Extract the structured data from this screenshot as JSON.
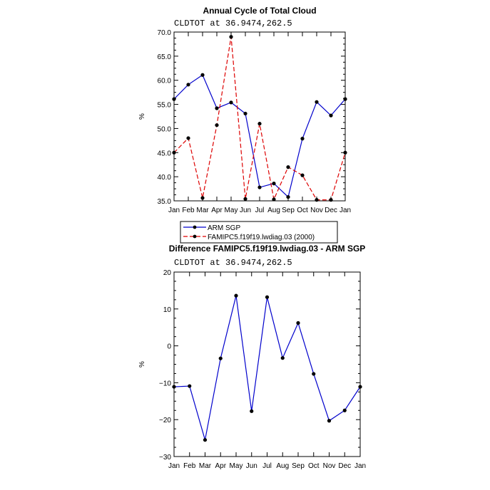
{
  "chart_data": [
    {
      "type": "line",
      "title": "Annual Cycle of Total Cloud",
      "subtitle": "CLDTOT at 36.9474,262.5",
      "xlabel": "",
      "ylabel": "%",
      "categories": [
        "Jan",
        "Feb",
        "Mar",
        "Apr",
        "May",
        "Jun",
        "Jul",
        "Aug",
        "Sep",
        "Oct",
        "Nov",
        "Dec",
        "Jan"
      ],
      "ylim": [
        35.0,
        70.0
      ],
      "yticks": [
        35.0,
        40.0,
        45.0,
        50.0,
        55.0,
        60.0,
        65.0,
        70.0
      ],
      "ytick_labels": [
        "35.0",
        "40.0",
        "45.0",
        "50.0",
        "55.0",
        "60.0",
        "65.0",
        "70.0"
      ],
      "grid": false,
      "legend_position": "bottom",
      "series": [
        {
          "name": "ARM SGP",
          "color": "#0000cc",
          "dash": "solid",
          "values": [
            56.1,
            59.1,
            61.1,
            54.2,
            55.4,
            53.1,
            37.8,
            38.6,
            35.8,
            47.9,
            55.5,
            52.7,
            56.1
          ]
        },
        {
          "name": "FAMIPC5.f19f19.lwdiag.03 (2000)",
          "color": "#dd0000",
          "dash": "dashed",
          "values": [
            45.0,
            48.0,
            35.6,
            50.7,
            69.0,
            35.4,
            51.0,
            35.3,
            42.0,
            40.3,
            35.2,
            35.2,
            45.0
          ]
        }
      ]
    },
    {
      "type": "line",
      "title": "Difference FAMIPC5.f19f19.lwdiag.03 - ARM SGP",
      "subtitle": "CLDTOT at 36.9474,262.5",
      "xlabel": "",
      "ylabel": "%",
      "categories": [
        "Jan",
        "Feb",
        "Mar",
        "Apr",
        "May",
        "Jun",
        "Jul",
        "Aug",
        "Sep",
        "Oct",
        "Nov",
        "Dec",
        "Jan"
      ],
      "ylim": [
        -30,
        20
      ],
      "yticks": [
        -30,
        -20,
        -10,
        0,
        10,
        20
      ],
      "ytick_labels": [
        "−30",
        "−20",
        "−10",
        "0",
        "10",
        "20"
      ],
      "grid": false,
      "series": [
        {
          "name": "",
          "color": "#0000cc",
          "dash": "solid",
          "values": [
            -11.1,
            -10.9,
            -25.5,
            -3.4,
            13.6,
            -17.7,
            13.2,
            -3.3,
            6.2,
            -7.6,
            -20.3,
            -17.5,
            -11.1
          ]
        }
      ]
    }
  ]
}
